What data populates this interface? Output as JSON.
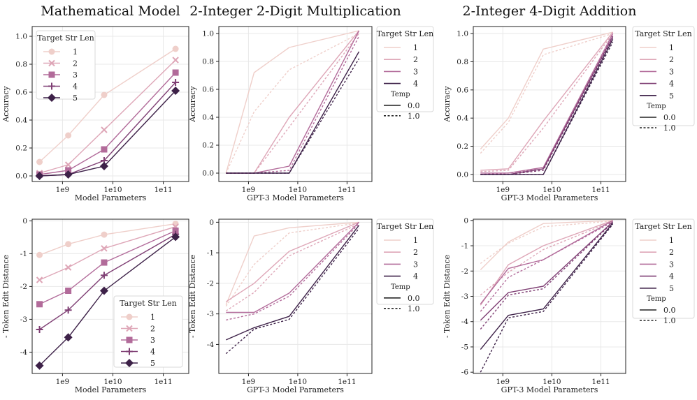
{
  "colors": {
    "1": "#efcfca",
    "2": "#dea6b7",
    "3": "#b26b9a",
    "4": "#7f3f74",
    "5": "#3d2148"
  },
  "chart_data": [
    {
      "type": "line",
      "title": "Mathematical Model",
      "xlabel": "Model Parameters",
      "ylabel": "Accuracy",
      "xscale": "log",
      "xlim": [
        250000000.0,
        320000000000.0
      ],
      "ylim": [
        -0.04,
        1.07
      ],
      "yticks": [
        0.0,
        0.2,
        0.4,
        0.6,
        0.8,
        1.0
      ],
      "xticks": [
        "1e9",
        "1e10",
        "1e11"
      ],
      "markers": true,
      "legend": {
        "title": "Target Str Len",
        "position": "upper-left",
        "temps": false
      },
      "x": [
        350000000.0,
        1300000000.0,
        6700000000.0,
        175000000000.0
      ],
      "series": [
        {
          "name": "1",
          "color_key": "1",
          "marker": "circle",
          "values": [
            0.1,
            0.29,
            0.58,
            0.91
          ]
        },
        {
          "name": "2",
          "color_key": "2",
          "marker": "x",
          "values": [
            0.02,
            0.08,
            0.33,
            0.83
          ]
        },
        {
          "name": "3",
          "color_key": "3",
          "marker": "square",
          "values": [
            0.01,
            0.04,
            0.19,
            0.74
          ]
        },
        {
          "name": "4",
          "color_key": "4",
          "marker": "plus",
          "values": [
            0.0,
            0.01,
            0.11,
            0.67
          ]
        },
        {
          "name": "5",
          "color_key": "5",
          "marker": "diamond",
          "values": [
            0.0,
            0.01,
            0.07,
            0.61
          ]
        }
      ]
    },
    {
      "type": "line",
      "title": "2-Integer 2-Digit Multiplication",
      "xlabel": "GPT-3 Model Parameters",
      "ylabel": "Accuracy",
      "xscale": "log",
      "xlim": [
        250000000.0,
        320000000000.0
      ],
      "ylim": [
        -0.06,
        1.05
      ],
      "yticks": [
        0.0,
        0.2,
        0.4,
        0.6,
        0.8,
        1.0
      ],
      "xticks": [
        "1e9",
        "1e10",
        "1e11"
      ],
      "markers": false,
      "legend": {
        "title": "Target Str Len",
        "position": "outside-right",
        "temps": true,
        "temp_title": "Temp",
        "temp_labels": [
          "0.0",
          "1.0"
        ]
      },
      "x": [
        350000000.0,
        1300000000.0,
        6700000000.0,
        175000000000.0
      ],
      "series": [
        {
          "name": "1",
          "color_key": "1",
          "dash": false,
          "values": [
            0.0,
            0.72,
            0.9,
            1.02
          ]
        },
        {
          "name": "1",
          "color_key": "1",
          "dash": true,
          "values": [
            0.0,
            0.44,
            0.74,
            1.0
          ]
        },
        {
          "name": "2",
          "color_key": "2",
          "dash": false,
          "values": [
            0.0,
            0.0,
            0.4,
            1.02
          ]
        },
        {
          "name": "2",
          "color_key": "2",
          "dash": true,
          "values": [
            0.0,
            0.0,
            0.33,
            1.0
          ]
        },
        {
          "name": "3",
          "color_key": "3",
          "dash": false,
          "values": [
            0.0,
            0.0,
            0.05,
            1.02
          ]
        },
        {
          "name": "3",
          "color_key": "3",
          "dash": true,
          "values": [
            0.0,
            0.0,
            0.02,
            0.98
          ]
        },
        {
          "name": "4",
          "color_key": "5",
          "dash": false,
          "values": [
            0.0,
            0.0,
            0.0,
            0.87
          ]
        },
        {
          "name": "4",
          "color_key": "5",
          "dash": true,
          "values": [
            0.0,
            0.0,
            0.0,
            0.82
          ]
        }
      ]
    },
    {
      "type": "line",
      "title": "2-Integer 4-Digit Addition",
      "xlabel": "GPT-3 Model Parameters",
      "ylabel": "Accuracy",
      "xscale": "log",
      "xlim": [
        250000000.0,
        320000000000.0
      ],
      "ylim": [
        -0.05,
        1.05
      ],
      "yticks": [
        0.0,
        0.2,
        0.4,
        0.6,
        0.8,
        1.0
      ],
      "xticks": [
        "1e9",
        "1e10",
        "1e11"
      ],
      "markers": false,
      "legend": {
        "title": "Target Str Len",
        "position": "outside-right",
        "temps": true,
        "temp_title": "Temp",
        "temp_labels": [
          "0.0",
          "1.0"
        ]
      },
      "x": [
        350000000.0,
        1300000000.0,
        6700000000.0,
        175000000000.0
      ],
      "series": [
        {
          "name": "1",
          "color_key": "1",
          "dash": false,
          "values": [
            0.18,
            0.4,
            0.89,
            1.01
          ]
        },
        {
          "name": "1",
          "color_key": "1",
          "dash": true,
          "values": [
            0.15,
            0.37,
            0.85,
            1.0
          ]
        },
        {
          "name": "2",
          "color_key": "2",
          "dash": false,
          "values": [
            0.03,
            0.04,
            0.38,
            1.01
          ]
        },
        {
          "name": "2",
          "color_key": "2",
          "dash": true,
          "values": [
            0.02,
            0.03,
            0.33,
            1.0
          ]
        },
        {
          "name": "3",
          "color_key": "3",
          "dash": false,
          "values": [
            0.01,
            0.01,
            0.05,
            1.0
          ]
        },
        {
          "name": "3",
          "color_key": "3",
          "dash": true,
          "values": [
            0.0,
            0.01,
            0.04,
            0.99
          ]
        },
        {
          "name": "4",
          "color_key": "4",
          "dash": false,
          "values": [
            0.0,
            0.0,
            0.04,
            0.98
          ]
        },
        {
          "name": "4",
          "color_key": "4",
          "dash": true,
          "values": [
            0.0,
            0.0,
            0.03,
            0.97
          ]
        },
        {
          "name": "5",
          "color_key": "5",
          "dash": false,
          "values": [
            0.0,
            0.0,
            0.0,
            0.96
          ]
        },
        {
          "name": "5",
          "color_key": "5",
          "dash": true,
          "values": [
            0.0,
            0.0,
            0.0,
            0.94
          ]
        }
      ]
    },
    {
      "type": "line",
      "title": "",
      "xlabel": "Model Parameters",
      "ylabel": "- Token Edit Distance",
      "xscale": "log",
      "xlim": [
        250000000.0,
        320000000000.0
      ],
      "ylim": [
        -4.65,
        0.05
      ],
      "yticks": [
        -4,
        -3,
        -2,
        -1,
        0
      ],
      "xticks": [
        "1e9",
        "1e10",
        "1e11"
      ],
      "markers": true,
      "legend": {
        "title": "Target Str Len",
        "position": "lower-right",
        "temps": false
      },
      "x": [
        350000000.0,
        1300000000.0,
        6700000000.0,
        175000000000.0
      ],
      "series": [
        {
          "name": "1",
          "color_key": "1",
          "marker": "circle",
          "values": [
            -1.04,
            -0.71,
            -0.42,
            -0.09
          ]
        },
        {
          "name": "2",
          "color_key": "2",
          "marker": "x",
          "values": [
            -1.8,
            -1.42,
            -0.84,
            -0.18
          ]
        },
        {
          "name": "3",
          "color_key": "3",
          "marker": "square",
          "values": [
            -2.54,
            -2.13,
            -1.27,
            -0.3
          ]
        },
        {
          "name": "4",
          "color_key": "4",
          "marker": "plus",
          "values": [
            -3.31,
            -2.72,
            -1.66,
            -0.41
          ]
        },
        {
          "name": "5",
          "color_key": "5",
          "marker": "diamond",
          "values": [
            -4.41,
            -3.55,
            -2.13,
            -0.49
          ]
        }
      ]
    },
    {
      "type": "line",
      "title": "",
      "xlabel": "GPT-3 Model Parameters",
      "ylabel": "- Token Edit Distance",
      "xscale": "log",
      "xlim": [
        250000000.0,
        320000000000.0
      ],
      "ylim": [
        -4.95,
        0.1
      ],
      "yticks": [
        -4,
        -3,
        -2,
        -1,
        0
      ],
      "xticks": [
        "1e9",
        "1e10",
        "1e11"
      ],
      "markers": false,
      "legend": {
        "title": "Target Str Len",
        "position": "outside-right",
        "temps": true,
        "temp_title": "Temp",
        "temp_labels": [
          "0.0",
          "1.0"
        ]
      },
      "x": [
        350000000.0,
        1300000000.0,
        6700000000.0,
        175000000000.0
      ],
      "series": [
        {
          "name": "1",
          "color_key": "1",
          "dash": false,
          "values": [
            -2.7,
            -0.45,
            -0.18,
            0.0
          ]
        },
        {
          "name": "1",
          "color_key": "1",
          "dash": true,
          "values": [
            -2.75,
            -1.38,
            -0.35,
            -0.02
          ]
        },
        {
          "name": "2",
          "color_key": "2",
          "dash": false,
          "values": [
            -2.6,
            -2.0,
            -0.95,
            0.0
          ]
        },
        {
          "name": "2",
          "color_key": "2",
          "dash": true,
          "values": [
            -2.9,
            -2.3,
            -1.1,
            -0.05
          ]
        },
        {
          "name": "3",
          "color_key": "3",
          "dash": false,
          "values": [
            -2.95,
            -2.95,
            -2.32,
            0.0
          ]
        },
        {
          "name": "3",
          "color_key": "3",
          "dash": true,
          "values": [
            -3.2,
            -3.0,
            -2.42,
            -0.05
          ]
        },
        {
          "name": "4",
          "color_key": "5",
          "dash": false,
          "values": [
            -3.85,
            -3.45,
            -3.08,
            -0.1
          ]
        },
        {
          "name": "4",
          "color_key": "5",
          "dash": true,
          "values": [
            -4.3,
            -3.5,
            -3.18,
            -0.2
          ]
        }
      ]
    },
    {
      "type": "line",
      "title": "",
      "xlabel": "GPT-3 Model Parameters",
      "ylabel": "- Token Edit Distance",
      "xscale": "log",
      "xlim": [
        250000000.0,
        320000000000.0
      ],
      "ylim": [
        -6.05,
        0.05
      ],
      "yticks": [
        -6,
        -5,
        -4,
        -3,
        -2,
        -1,
        0
      ],
      "xticks": [
        "1e9",
        "1e10",
        "1e11"
      ],
      "markers": false,
      "legend": {
        "title": "Target Str Len",
        "position": "outside-right",
        "temps": true,
        "temp_title": "Temp",
        "temp_labels": [
          "0.0",
          "1.0"
        ]
      },
      "x": [
        350000000.0,
        1300000000.0,
        6700000000.0,
        175000000000.0
      ],
      "series": [
        {
          "name": "1",
          "color_key": "1",
          "dash": false,
          "values": [
            -1.95,
            -0.85,
            -0.12,
            0.0
          ]
        },
        {
          "name": "1",
          "color_key": "1",
          "dash": true,
          "values": [
            -1.7,
            -0.9,
            -0.25,
            -0.02
          ]
        },
        {
          "name": "2",
          "color_key": "2",
          "dash": false,
          "values": [
            -3.35,
            -1.75,
            -1.0,
            0.0
          ]
        },
        {
          "name": "2",
          "color_key": "2",
          "dash": true,
          "values": [
            -2.95,
            -2.05,
            -1.15,
            -0.03
          ]
        },
        {
          "name": "3",
          "color_key": "3",
          "dash": false,
          "values": [
            -3.3,
            -1.9,
            -1.55,
            0.0
          ]
        },
        {
          "name": "3",
          "color_key": "3",
          "dash": true,
          "values": [
            -3.6,
            -2.25,
            -1.55,
            -0.05
          ]
        },
        {
          "name": "4",
          "color_key": "4",
          "dash": false,
          "values": [
            -3.95,
            -2.85,
            -2.6,
            -0.05
          ]
        },
        {
          "name": "4",
          "color_key": "4",
          "dash": true,
          "values": [
            -4.3,
            -2.95,
            -2.7,
            -0.08
          ]
        },
        {
          "name": "5",
          "color_key": "5",
          "dash": false,
          "values": [
            -5.1,
            -3.75,
            -3.5,
            -0.1
          ]
        },
        {
          "name": "5",
          "color_key": "5",
          "dash": true,
          "values": [
            -6.0,
            -3.85,
            -3.6,
            -0.15
          ]
        }
      ]
    }
  ]
}
